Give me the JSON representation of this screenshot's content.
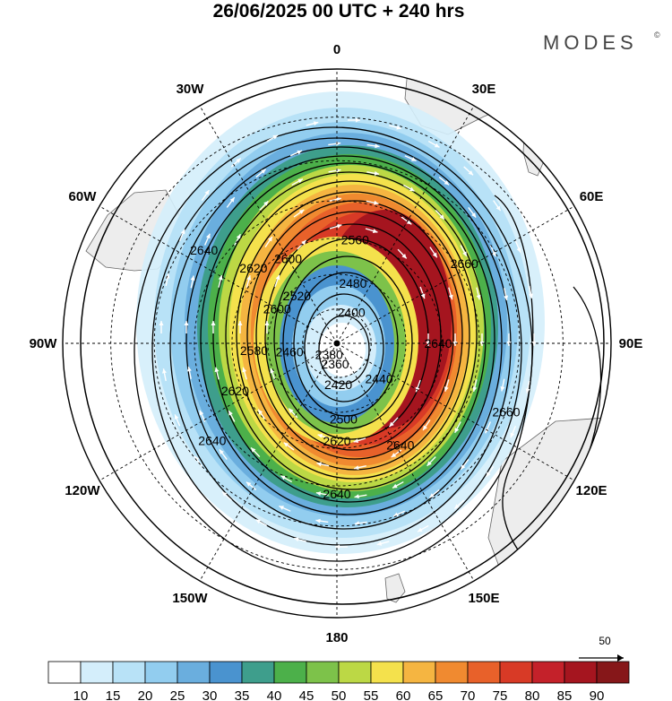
{
  "title": "26/06/2025  00 UTC  + 240 hrs",
  "brand": {
    "name": "MODES",
    "mark": "©"
  },
  "longitude_labels": [
    {
      "text": "0",
      "lon": 0
    },
    {
      "text": "30E",
      "lon": 30
    },
    {
      "text": "60E",
      "lon": 60
    },
    {
      "text": "90E",
      "lon": 90
    },
    {
      "text": "120E",
      "lon": 120
    },
    {
      "text": "150E",
      "lon": 150
    },
    {
      "text": "180",
      "lon": 180
    },
    {
      "text": "150W",
      "lon": -150
    },
    {
      "text": "120W",
      "lon": -120
    },
    {
      "text": "90W",
      "lon": -90
    },
    {
      "text": "60W",
      "lon": -60
    },
    {
      "text": "30W",
      "lon": -30
    }
  ],
  "contour_labels": [
    "2640",
    "2620",
    "2600",
    "2580",
    "2560",
    "2540",
    "2520",
    "2500",
    "2480",
    "2460",
    "2440",
    "2420",
    "2400",
    "2380",
    "2360",
    "2660"
  ],
  "contour_label_items": [
    {
      "text": "2640",
      "lon": -55,
      "lat": -45
    },
    {
      "text": "2620",
      "lon": -48,
      "lat": -58
    },
    {
      "text": "2600",
      "lon": -30,
      "lat": -62
    },
    {
      "text": "2600",
      "lon": -60,
      "lat": -70
    },
    {
      "text": "2580",
      "lon": -95,
      "lat": -66
    },
    {
      "text": "2560",
      "lon": 10,
      "lat": -60
    },
    {
      "text": "2520",
      "lon": -40,
      "lat": -72
    },
    {
      "text": "2500",
      "lon": 175,
      "lat": -68
    },
    {
      "text": "2480",
      "lon": 15,
      "lat": -72
    },
    {
      "text": "2460",
      "lon": -100,
      "lat": -76
    },
    {
      "text": "2440",
      "lon": 130,
      "lat": -74
    },
    {
      "text": "2420",
      "lon": 178,
      "lat": -78
    },
    {
      "text": "2400",
      "lon": 25,
      "lat": -80
    },
    {
      "text": "2380",
      "lon": -145,
      "lat": -86
    },
    {
      "text": "2360",
      "lon": -175,
      "lat": -84
    },
    {
      "text": "2660",
      "lon": 58,
      "lat": -48
    },
    {
      "text": "2660",
      "lon": 112,
      "lat": -40
    },
    {
      "text": "2640",
      "lon": 90,
      "lat": -61
    },
    {
      "text": "2620",
      "lon": -115,
      "lat": -58
    },
    {
      "text": "2640",
      "lon": -128,
      "lat": -46
    },
    {
      "text": "2620",
      "lon": 180,
      "lat": -62
    },
    {
      "text": "2640",
      "lon": 180,
      "lat": -48
    },
    {
      "text": "2640",
      "lon": 148,
      "lat": -56
    }
  ],
  "colorbar": {
    "ticks": [
      "10",
      "15",
      "20",
      "25",
      "30",
      "35",
      "40",
      "45",
      "50",
      "55",
      "60",
      "65",
      "70",
      "75",
      "80",
      "85",
      "90"
    ],
    "colors": [
      "#ffffff",
      "#d4eefb",
      "#b8e2f7",
      "#92cdef",
      "#6aaede",
      "#4a93cf",
      "#3e9e8c",
      "#4cb04a",
      "#7dc24a",
      "#bcd845",
      "#f4e14c",
      "#f5b541",
      "#f08a30",
      "#e8612a",
      "#d83a26",
      "#c4212a",
      "#a5151f",
      "#861719"
    ]
  },
  "reference_vector": {
    "value": "50"
  },
  "map": {
    "projection": "south-polar-stereographic",
    "pole": "south",
    "field_shaded": "wind-speed",
    "field_contour": "geopotential-height"
  }
}
